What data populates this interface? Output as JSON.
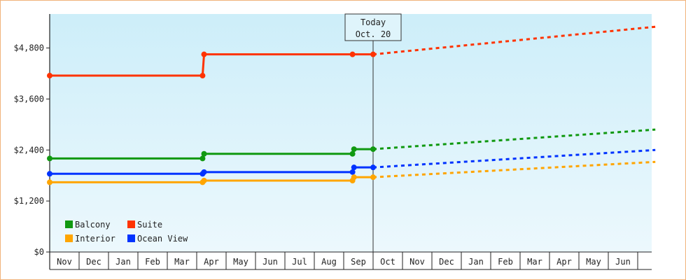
{
  "chart_data": {
    "type": "line",
    "y_ticks": [
      "$0",
      "$1,200",
      "$2,400",
      "$3,600",
      "$4,800"
    ],
    "y_tick_values": [
      0,
      1200,
      2400,
      3600,
      4800
    ],
    "ylim": [
      0,
      5600
    ],
    "months": [
      "Nov",
      "Dec",
      "Jan",
      "Feb",
      "Mar",
      "Apr",
      "May",
      "Jun",
      "Jul",
      "Aug",
      "Sep",
      "Oct",
      "Nov",
      "Dec",
      "Jan",
      "Feb",
      "Mar",
      "Apr",
      "May",
      "Jun"
    ],
    "grid": false,
    "legend_position": "bottom-left",
    "annotation": {
      "line1": "Today",
      "line2": "Oct. 20"
    },
    "series": [
      {
        "name": "Suite",
        "color": "#ff3300",
        "points": [
          [
            0,
            4150
          ],
          [
            5.2,
            4150
          ],
          [
            5.25,
            4650
          ],
          [
            10.3,
            4650
          ],
          [
            11,
            4650
          ]
        ],
        "projection": [
          [
            11,
            4650
          ],
          [
            20.6,
            5300
          ]
        ]
      },
      {
        "name": "Balcony",
        "color": "#119911",
        "points": [
          [
            0,
            2200
          ],
          [
            5.2,
            2200
          ],
          [
            5.25,
            2310
          ],
          [
            10.3,
            2310
          ],
          [
            10.35,
            2420
          ],
          [
            11,
            2420
          ]
        ],
        "projection": [
          [
            11,
            2420
          ],
          [
            20.6,
            2880
          ]
        ]
      },
      {
        "name": "Ocean View",
        "color": "#0033ff",
        "points": [
          [
            0,
            1840
          ],
          [
            5.2,
            1840
          ],
          [
            5.25,
            1880
          ],
          [
            10.3,
            1880
          ],
          [
            10.35,
            1990
          ],
          [
            11,
            1990
          ]
        ],
        "projection": [
          [
            11,
            1990
          ],
          [
            20.6,
            2400
          ]
        ]
      },
      {
        "name": "Interior",
        "color": "#ffa500",
        "points": [
          [
            0,
            1640
          ],
          [
            5.2,
            1640
          ],
          [
            5.25,
            1680
          ],
          [
            10.3,
            1680
          ],
          [
            10.35,
            1760
          ],
          [
            11,
            1760
          ]
        ],
        "projection": [
          [
            11,
            1760
          ],
          [
            20.6,
            2120
          ]
        ]
      }
    ],
    "legend": [
      {
        "name": "Balcony",
        "color": "#119911"
      },
      {
        "name": "Suite",
        "color": "#ff3300"
      },
      {
        "name": "Interior",
        "color": "#ffa500"
      },
      {
        "name": "Ocean View",
        "color": "#0033ff"
      }
    ]
  }
}
